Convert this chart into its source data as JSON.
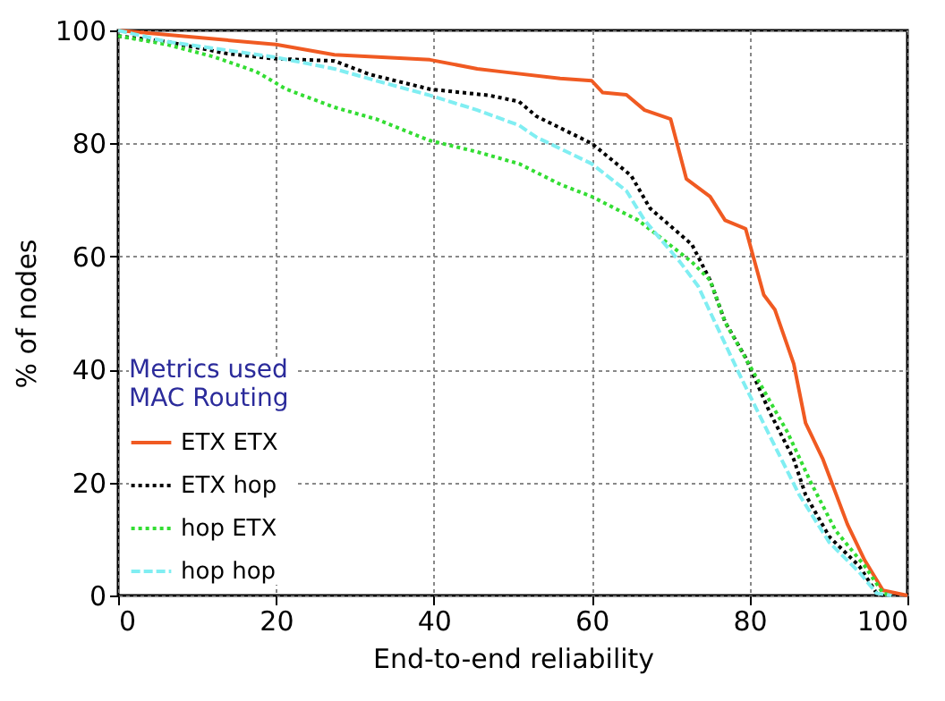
{
  "chart_data": {
    "type": "line",
    "xlabel": "End-to-end reliability",
    "ylabel": "% of nodes",
    "legend_title": "Metrics used",
    "annotations": [
      "MAC  Routing"
    ],
    "xlim": [
      0,
      100
    ],
    "ylim": [
      0,
      100
    ],
    "xticks": [
      0,
      20,
      40,
      60,
      80,
      100
    ],
    "yticks": [
      0,
      20,
      40,
      60,
      80,
      100
    ],
    "grid": true,
    "legend": "bottom left",
    "marker": "none",
    "series": [
      {
        "name": "ETX   ETX",
        "color": "#f05a22",
        "line_style": "solid",
        "x": [
          0,
          20,
          27.4,
          39.5,
          45.5,
          48.5,
          56,
          60,
          61.4,
          64.4,
          66.7,
          70,
          72,
          75,
          76.9,
          79.5,
          81.8,
          83.2,
          85.6,
          87.1,
          89.3,
          92.4,
          94.6,
          96.9,
          100
        ],
        "values": [
          100,
          97.5,
          95.7,
          94.8,
          93.2,
          92.7,
          91.5,
          91.1,
          89,
          88.6,
          85.9,
          84.3,
          73.7,
          70.6,
          66.4,
          64.9,
          53.2,
          50.6,
          41,
          30.5,
          24.1,
          12.6,
          6.2,
          0.9,
          0
        ]
      },
      {
        "name": "ETX   hop",
        "color": "#000000",
        "line_style": "dotted",
        "x": [
          0,
          6.2,
          13.8,
          19.7,
          27.4,
          31.9,
          39.5,
          47,
          50.8,
          53,
          60,
          65,
          67.4,
          72.7,
          75,
          76.9,
          79.5,
          82.5,
          85.6,
          87.1,
          90.1,
          93.9,
          96.1,
          97
        ],
        "values": [
          99,
          98,
          95.9,
          95,
          94.6,
          92.2,
          89.6,
          88.5,
          87.4,
          84.8,
          80,
          74.3,
          68.5,
          62.1,
          55.8,
          48.4,
          42.1,
          32.6,
          24.1,
          17.8,
          10.4,
          5.2,
          0.4,
          0
        ]
      },
      {
        "name": "hop   ETX",
        "color": "#33dd33",
        "line_style": "dotted",
        "x": [
          0,
          6.2,
          12.2,
          17.5,
          21.3,
          27.4,
          32.7,
          39.5,
          45.5,
          50.8,
          56.1,
          60,
          65.9,
          72.7,
          75,
          76.9,
          80.3,
          84.8,
          87.8,
          90.9,
          94.6,
          96.9,
          98
        ],
        "values": [
          99,
          97.5,
          95.3,
          92.7,
          89.6,
          86.4,
          84.3,
          80.5,
          78.5,
          76.4,
          72.7,
          70.6,
          66.4,
          59,
          55.8,
          48.4,
          40,
          28.9,
          19.9,
          11.5,
          5.2,
          0.4,
          0
        ]
      },
      {
        "name": "hop   hop",
        "color": "#80eef2",
        "line_style": "dashed",
        "x": [
          0,
          6.2,
          13.8,
          19.7,
          27.4,
          32.7,
          39.5,
          45.5,
          50.8,
          53,
          60,
          64.4,
          66.7,
          71.2,
          73.5,
          75.4,
          78.8,
          82.5,
          86.3,
          90.1,
          93.9,
          96.1,
          98
        ],
        "values": [
          100,
          98,
          96.5,
          95.3,
          93.2,
          91.1,
          88.5,
          85.9,
          83.2,
          81.1,
          76.4,
          71.6,
          66.4,
          59,
          54.7,
          49,
          38.9,
          28.4,
          17.8,
          9.4,
          4.1,
          0.4,
          0
        ]
      }
    ]
  }
}
